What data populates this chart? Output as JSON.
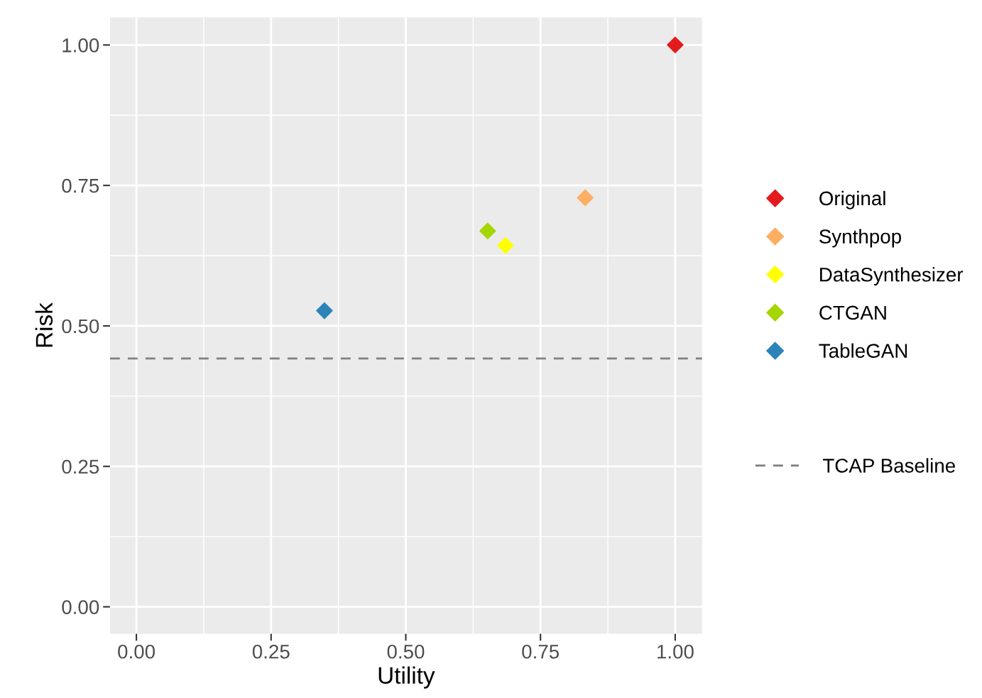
{
  "chart_data": {
    "type": "scatter",
    "xlabel": "Utility",
    "ylabel": "Risk",
    "xlim": [
      -0.049,
      1.05
    ],
    "ylim": [
      -0.048,
      1.049
    ],
    "xticks": [
      {
        "value": 0,
        "label": "0.00"
      },
      {
        "value": 0.25,
        "label": "0.25"
      },
      {
        "value": 0.5,
        "label": "0.50"
      },
      {
        "value": 0.75,
        "label": "0.75"
      },
      {
        "value": 1,
        "label": "1.00"
      }
    ],
    "yticks": [
      {
        "value": 0,
        "label": "0.00"
      },
      {
        "value": 0.25,
        "label": "0.25"
      },
      {
        "value": 0.5,
        "label": "0.50"
      },
      {
        "value": 0.75,
        "label": "0.75"
      },
      {
        "value": 1,
        "label": "1.00"
      }
    ],
    "grid": true,
    "legend": "right",
    "marker": "diamond",
    "series": [
      {
        "name": "Original",
        "color": "#e41a1c",
        "x": [
          1.0
        ],
        "values": [
          1.0
        ]
      },
      {
        "name": "Synthpop",
        "color": "#fdae61",
        "x": [
          0.833
        ],
        "values": [
          0.728
        ]
      },
      {
        "name": "DataSynthesizer",
        "color": "#ffff00",
        "x": [
          0.685
        ],
        "values": [
          0.643
        ]
      },
      {
        "name": "CTGAN",
        "color": "#a6d600",
        "x": [
          0.652
        ],
        "values": [
          0.669
        ]
      },
      {
        "name": "TableGAN",
        "color": "#2b83ba",
        "x": [
          0.349
        ],
        "values": [
          0.527
        ]
      }
    ],
    "ref_lines": [
      {
        "axis": "y",
        "value": 0.442,
        "label": "TCAP Baseline",
        "color": "#808080",
        "line_style": "dashed"
      }
    ]
  }
}
